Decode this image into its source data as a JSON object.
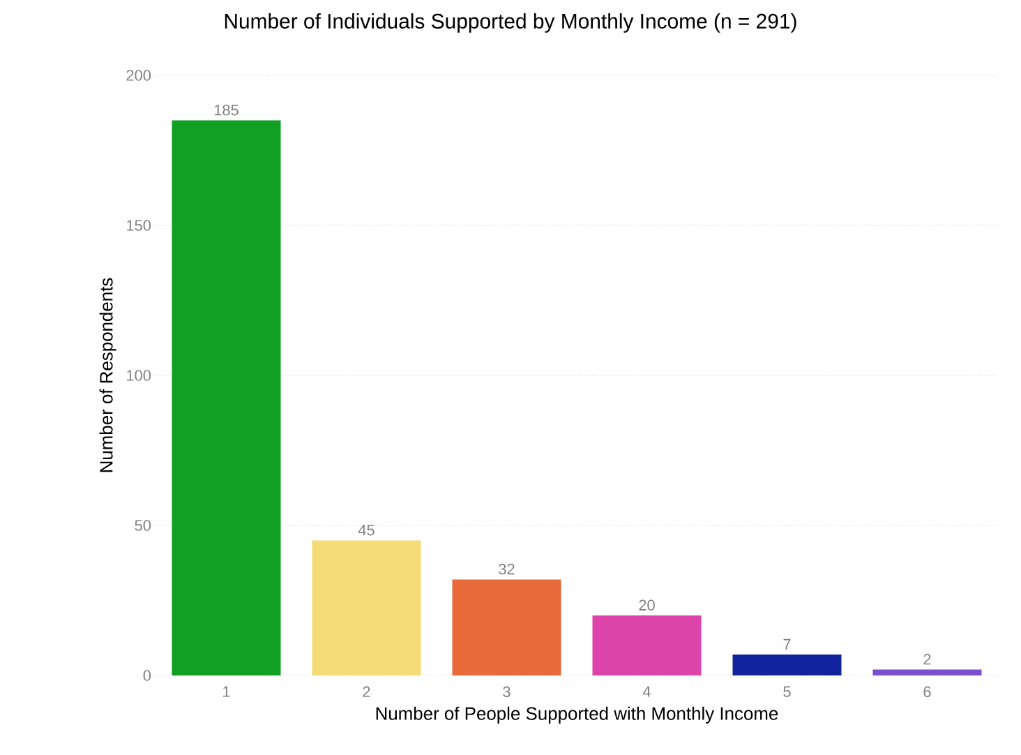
{
  "chart_data": {
    "type": "bar",
    "title": "Number of Individuals Supported by Monthly Income (n = 291)",
    "xlabel": "Number of People Supported with Monthly Income",
    "ylabel": "Number of Respondents",
    "categories": [
      "1",
      "2",
      "3",
      "4",
      "5",
      "6"
    ],
    "values": [
      185,
      45,
      32,
      20,
      7,
      2
    ],
    "colors": [
      "#11a022",
      "#f5dc78",
      "#e86a3a",
      "#dd44aa",
      "#12239e",
      "#7b4fd0"
    ],
    "ylim": [
      0,
      200
    ],
    "yticks": [
      0,
      50,
      100,
      150,
      200
    ],
    "grid": "y",
    "data_labels": true
  }
}
